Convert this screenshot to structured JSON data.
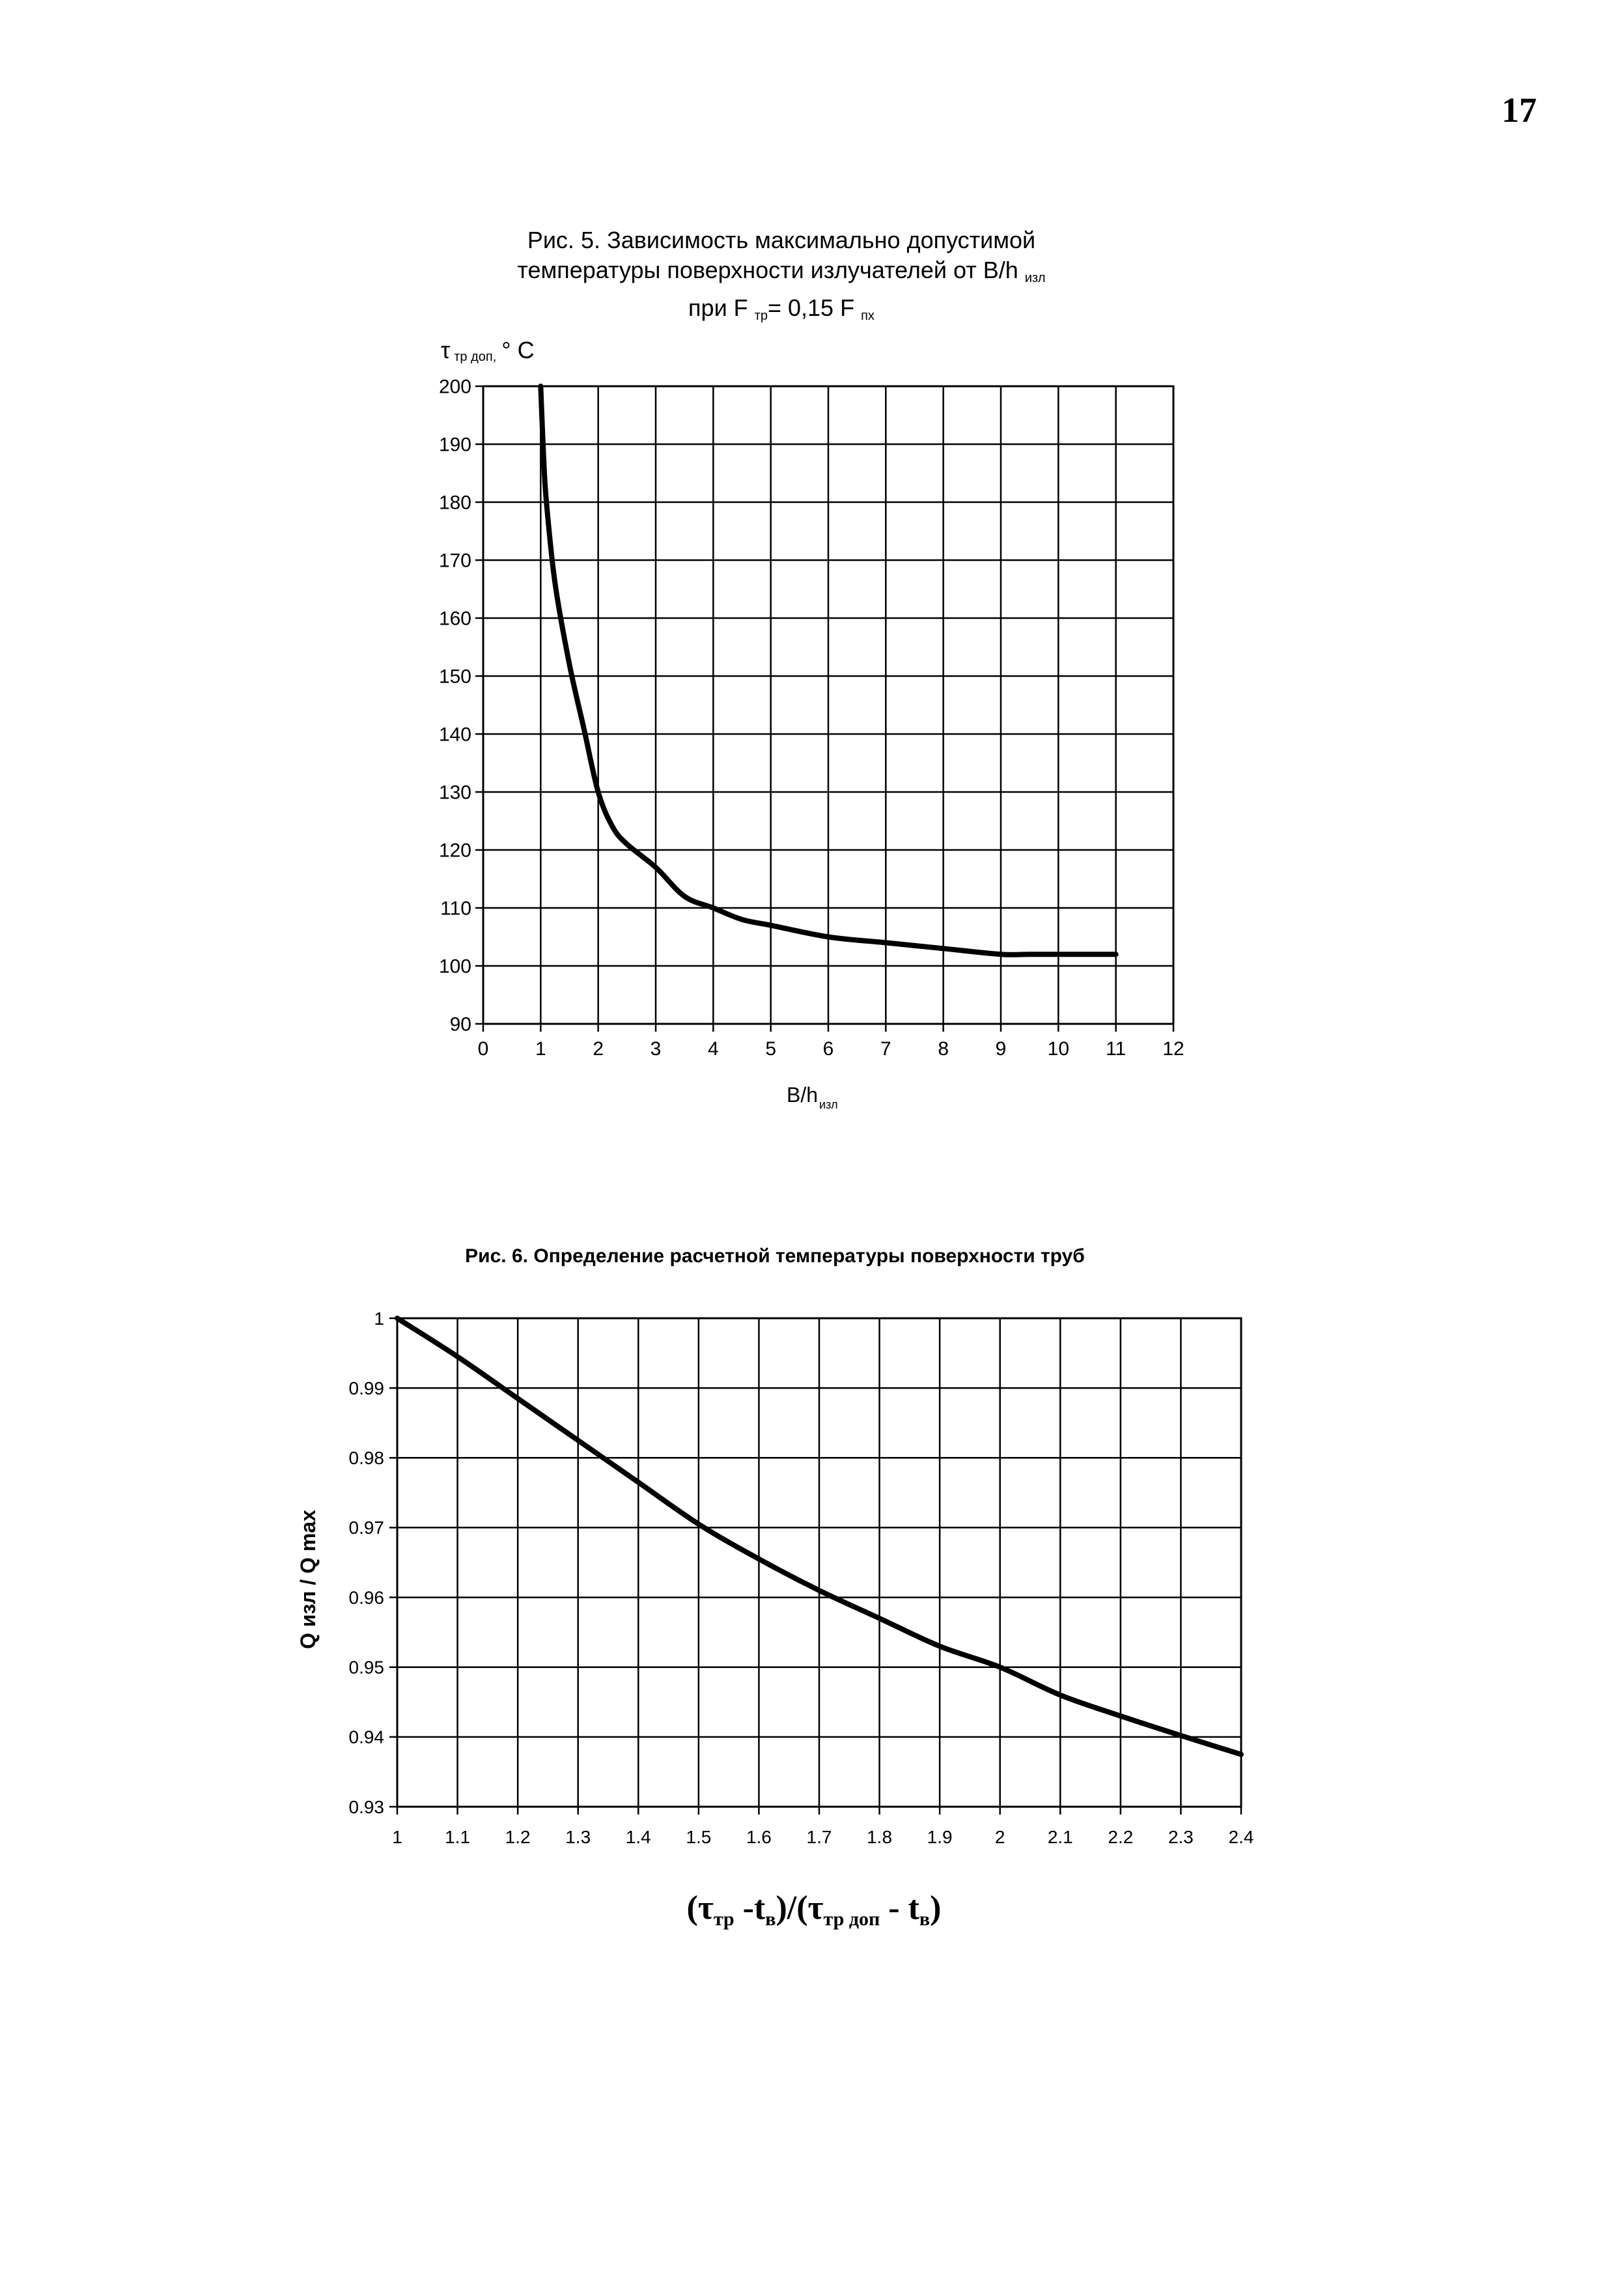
{
  "page_number": "17",
  "fig5": {
    "title_line1": "Рис. 5. Зависимость максимально допустимой",
    "title_line2_a": "температуры поверхности излучателей от B/h",
    "title_line2_sub": "изл",
    "title_line3_a": "при F",
    "title_line3_sub1": "тр",
    "title_line3_b": "= 0,15 F",
    "title_line3_sub2": "пх",
    "ylabel_a": "τ",
    "ylabel_sub": "тр доп,",
    "ylabel_b": "° С",
    "xlabel_a": "B/h",
    "xlabel_sub": "изл"
  },
  "fig6": {
    "title": "Рис. 6. Определение расчетной температуры поверхности труб",
    "ylabel": "Q изл / Q max",
    "xlabel_p1": "(τ",
    "xlabel_s1": "тр",
    "xlabel_p2": " -t",
    "xlabel_s2": "в",
    "xlabel_p3": ")/(τ",
    "xlabel_s3": "тр доп",
    "xlabel_p4": " - t",
    "xlabel_s4": "в",
    "xlabel_p5": ")"
  },
  "chart_data": [
    {
      "type": "line",
      "title": "Рис. 5. Зависимость максимально допустимой температуры поверхности излучателей от B/h изл при F тр = 0,15 F пх",
      "xlabel": "B/h изл",
      "ylabel": "τ тр доп, ° С",
      "xlim": [
        0,
        12
      ],
      "ylim": [
        90,
        200
      ],
      "xticks": [
        0,
        1,
        2,
        3,
        4,
        5,
        6,
        7,
        8,
        9,
        10,
        11,
        12
      ],
      "yticks": [
        90,
        100,
        110,
        120,
        130,
        140,
        150,
        160,
        170,
        180,
        190,
        200
      ],
      "grid": true,
      "line_color": "#000000",
      "x": [
        1,
        1.05,
        1.1,
        1.25,
        1.5,
        1.75,
        2,
        2.25,
        2.5,
        3,
        3.5,
        4,
        4.5,
        5,
        6,
        7,
        8,
        9,
        9.5,
        10,
        11
      ],
      "y": [
        200,
        188,
        180,
        166,
        152,
        141,
        130,
        124,
        121,
        117,
        112,
        110,
        108,
        107,
        105,
        104,
        103,
        102,
        102,
        102,
        102
      ]
    },
    {
      "type": "line",
      "title": "Рис. 6. Определение расчетной температуры поверхности труб",
      "xlabel": "(τ тр -t в)/(τ тр доп - t в)",
      "ylabel": "Q изл / Q max",
      "xlim": [
        1,
        2.4
      ],
      "ylim": [
        0.93,
        1
      ],
      "xticks": [
        "1",
        "1.1",
        "1.2",
        "1.3",
        "1.4",
        "1.5",
        "1.6",
        "1.7",
        "1.8",
        "1.9",
        "2",
        "2.1",
        "2.2",
        "2.3",
        "2.4"
      ],
      "yticks": [
        "0.93",
        "0.94",
        "0.95",
        "0.96",
        "0.97",
        "0.98",
        "0.99",
        "1"
      ],
      "grid": true,
      "line_color": "#000000",
      "x": [
        1,
        1.1,
        1.2,
        1.3,
        1.4,
        1.5,
        1.6,
        1.7,
        1.8,
        1.9,
        2,
        2.1,
        2.2,
        2.3,
        2.4
      ],
      "y": [
        1,
        0.9945,
        0.9885,
        0.9825,
        0.9765,
        0.9705,
        0.9655,
        0.961,
        0.957,
        0.953,
        0.95,
        0.946,
        0.943,
        0.9402,
        0.9375
      ]
    }
  ]
}
